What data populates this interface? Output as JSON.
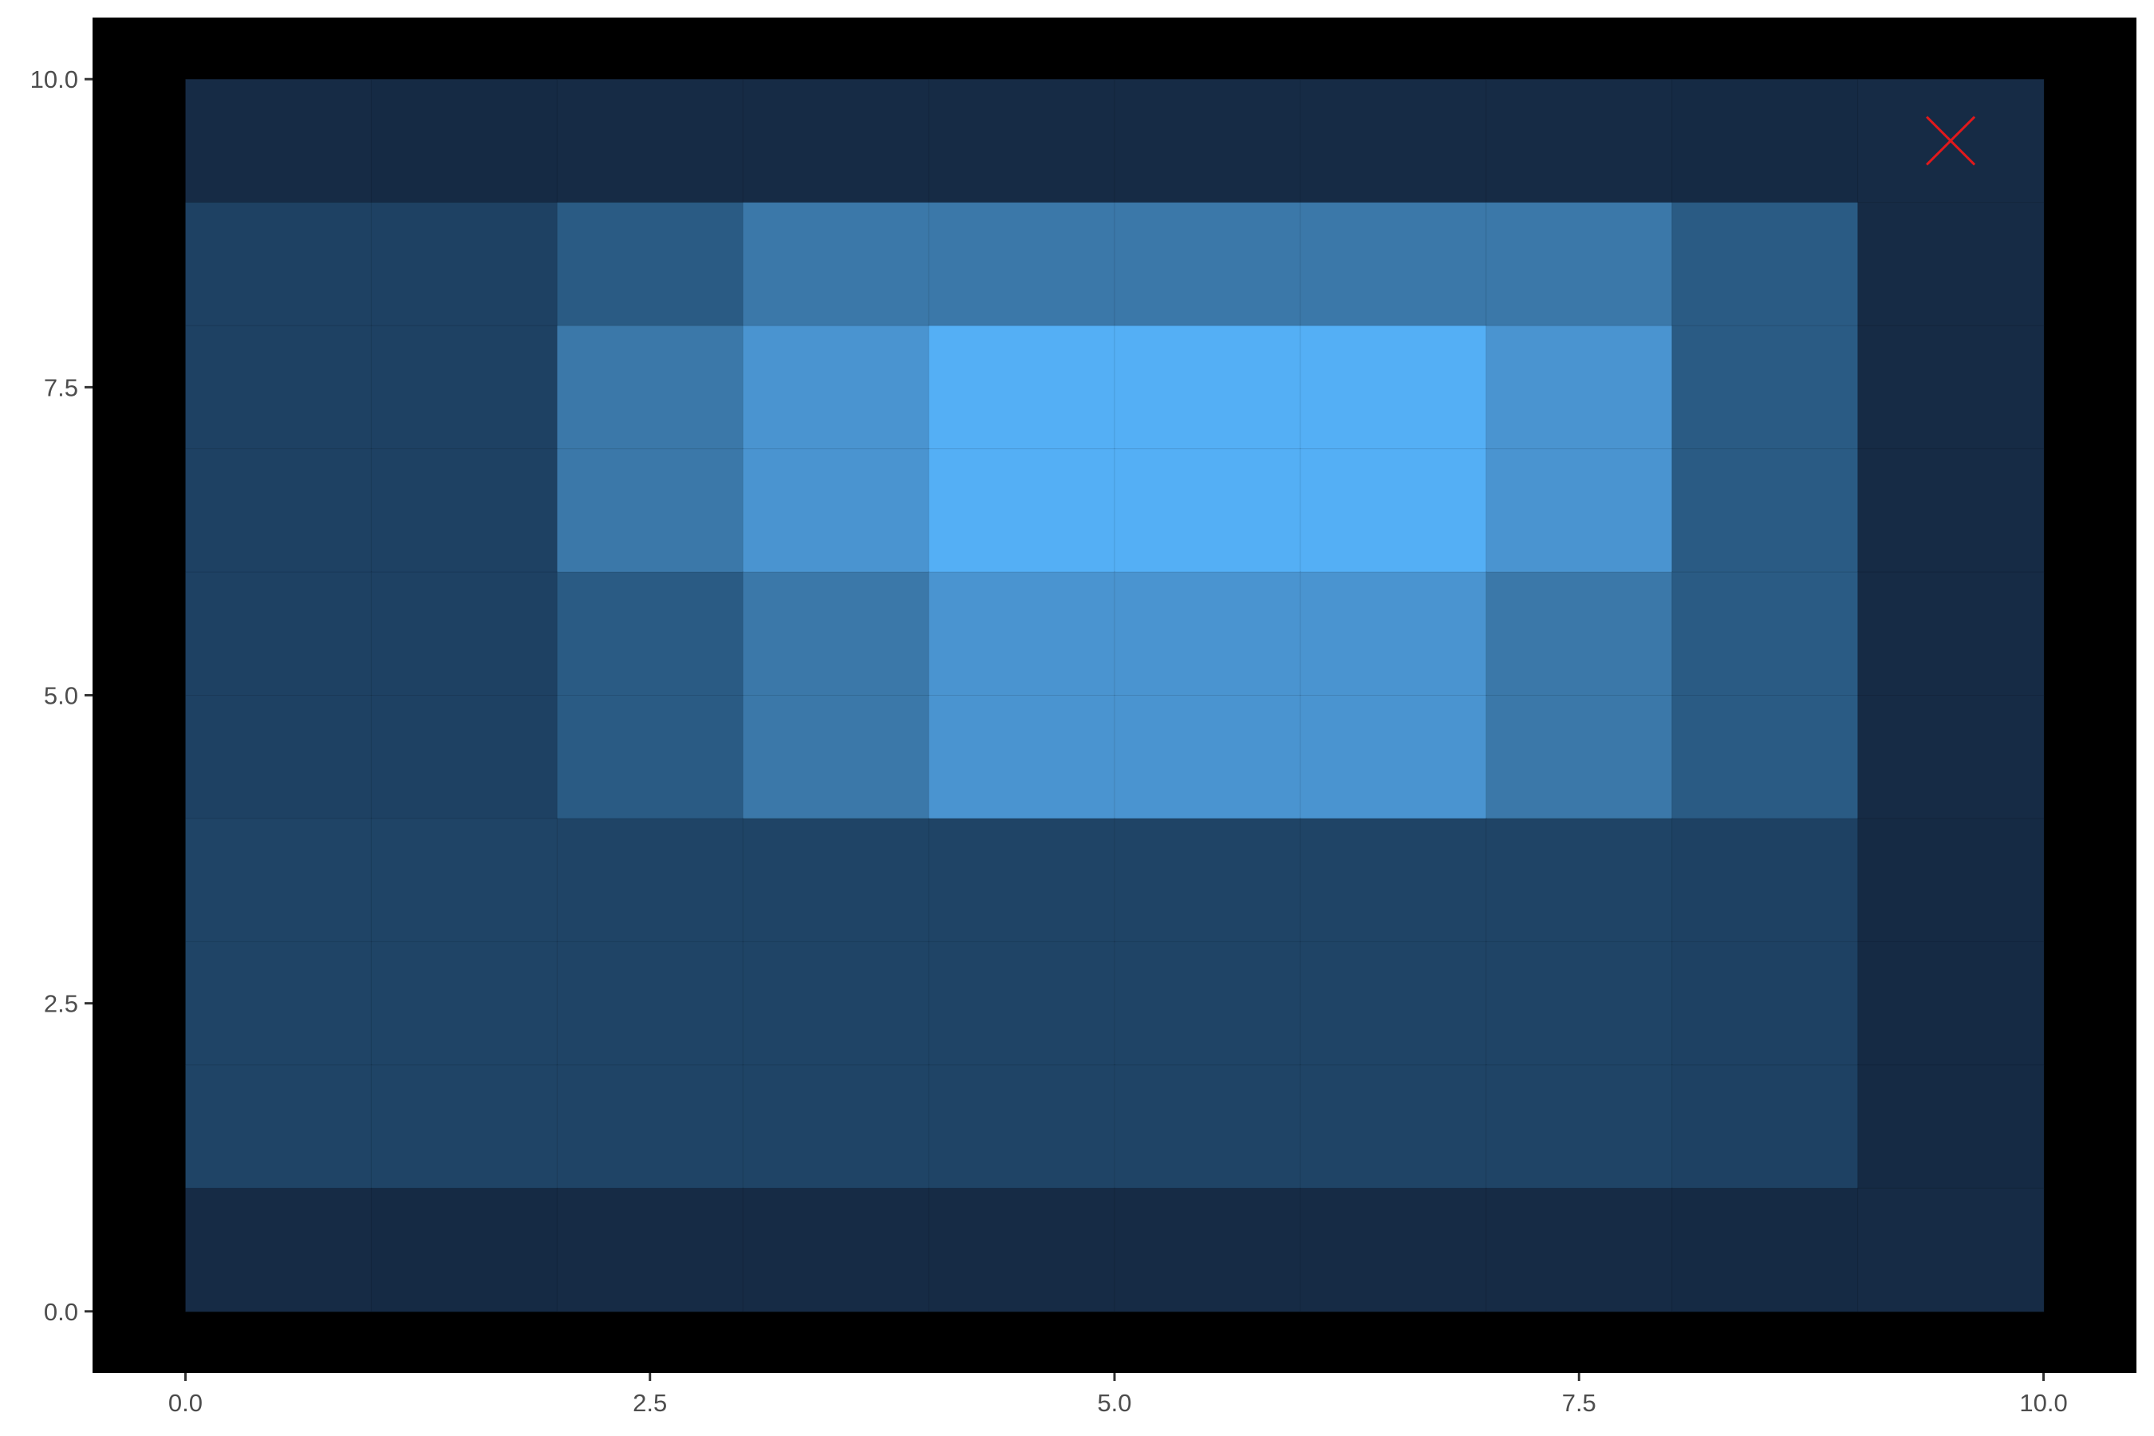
{
  "chart_data": {
    "type": "heatmap",
    "title": "",
    "xlabel": "",
    "ylabel": "",
    "xlim": [
      -0.5,
      10.5
    ],
    "ylim": [
      -0.5,
      10.5
    ],
    "x_ticks": [
      "0.0",
      "2.5",
      "5.0",
      "7.5",
      "10.0"
    ],
    "y_ticks": [
      "0.0",
      "2.5",
      "5.0",
      "7.5",
      "10.0"
    ],
    "panel_background": "#000000",
    "grid": false,
    "x_edges": [
      0,
      1,
      2,
      3,
      4,
      5,
      6,
      7,
      8,
      9,
      10
    ],
    "y_edges": [
      0,
      1,
      2,
      3,
      4,
      5,
      6,
      7,
      8,
      9,
      10
    ],
    "cell_colors_top_to_bottom": [
      [
        "#162b45",
        "#152a44",
        "#162b45",
        "#162b45",
        "#162b45",
        "#162b45",
        "#162b45",
        "#162b45",
        "#152a44",
        "#162b45"
      ],
      [
        "#1e4163",
        "#1e4163",
        "#2a5b84",
        "#3b78a9",
        "#3b78a9",
        "#3b78a9",
        "#3b78a9",
        "#3b78a9",
        "#2a5b84",
        "#162b45"
      ],
      [
        "#1e4163",
        "#1e4163",
        "#3b78a9",
        "#4a94d0",
        "#54aff5",
        "#54aff5",
        "#54aff5",
        "#4a94d0",
        "#2a5b84",
        "#162b45"
      ],
      [
        "#1e4163",
        "#1e4163",
        "#3b78a9",
        "#4a94d0",
        "#54aff5",
        "#54aff5",
        "#54aff5",
        "#4a94d0",
        "#2a5b84",
        "#162b45"
      ],
      [
        "#1e4163",
        "#1e4163",
        "#2a5b84",
        "#3b78a9",
        "#4a94d0",
        "#4a94d0",
        "#4a94d0",
        "#3b78a9",
        "#2a5b84",
        "#162b45"
      ],
      [
        "#1e4163",
        "#1e4163",
        "#2a5b84",
        "#3b78a9",
        "#4a94d0",
        "#4a94d0",
        "#4a94d0",
        "#3b78a9",
        "#2a5b84",
        "#162b45"
      ],
      [
        "#1f4466",
        "#1f4466",
        "#1f4466",
        "#1f4466",
        "#1f4466",
        "#1f4466",
        "#1f4466",
        "#1f4466",
        "#1e4163",
        "#152a44"
      ],
      [
        "#1f4466",
        "#1f4466",
        "#1f4466",
        "#1f4466",
        "#1f4466",
        "#1f4466",
        "#1f4466",
        "#1f4466",
        "#1e4163",
        "#152a44"
      ],
      [
        "#1f4466",
        "#1f4466",
        "#1f4466",
        "#1f4466",
        "#1f4466",
        "#1f4466",
        "#1f4466",
        "#1f4466",
        "#1e4163",
        "#152a44"
      ],
      [
        "#162b45",
        "#152a44",
        "#162b45",
        "#162b45",
        "#162b45",
        "#162b45",
        "#162b45",
        "#162b45",
        "#152a44",
        "#162b45"
      ]
    ],
    "marker": {
      "shape": "x",
      "x": 9.5,
      "y": 9.5,
      "color": "#e0191c"
    }
  }
}
